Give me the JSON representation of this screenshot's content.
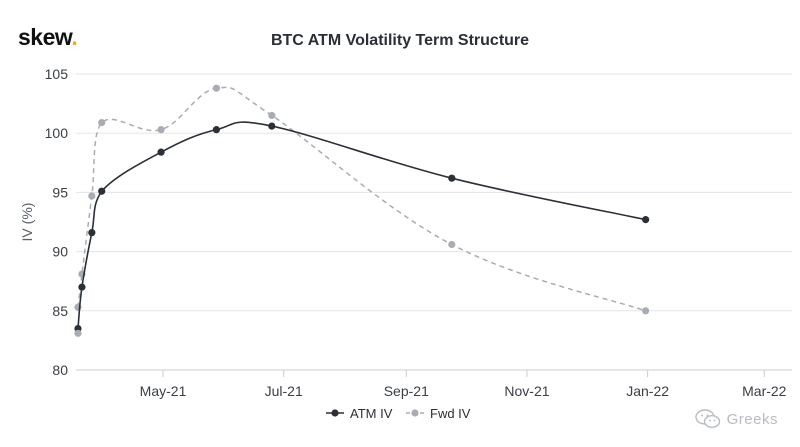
{
  "brand": {
    "name": "skew",
    "dot": "."
  },
  "watermark": {
    "text": "Greeks",
    "icon": "wechat-icon"
  },
  "chart_data": {
    "type": "line",
    "title": "BTC ATM Volatility Term Structure",
    "xlabel": "",
    "ylabel": "IV (%)",
    "ylim": [
      80,
      105
    ],
    "yticks": [
      80,
      85,
      90,
      95,
      100,
      105
    ],
    "xlim": [
      "2021-03-18",
      "2022-03-15"
    ],
    "xticks": [
      {
        "date": "2021-05-01",
        "label": "May-21"
      },
      {
        "date": "2021-07-01",
        "label": "Jul-21"
      },
      {
        "date": "2021-09-01",
        "label": "Sep-21"
      },
      {
        "date": "2021-11-01",
        "label": "Nov-21"
      },
      {
        "date": "2022-01-01",
        "label": "Jan-22"
      },
      {
        "date": "2022-03-01",
        "label": "Mar-22"
      }
    ],
    "series": [
      {
        "name": "ATM IV",
        "color": "#2b2f36",
        "style": "solid",
        "points": [
          {
            "x": "2021-03-19",
            "y": 83.5
          },
          {
            "x": "2021-03-21",
            "y": 87.0
          },
          {
            "x": "2021-03-26",
            "y": 91.6
          },
          {
            "x": "2021-03-31",
            "y": 95.1
          },
          {
            "x": "2021-04-30",
            "y": 98.4
          },
          {
            "x": "2021-05-28",
            "y": 100.3
          },
          {
            "x": "2021-06-25",
            "y": 100.6
          },
          {
            "x": "2021-09-24",
            "y": 96.2
          },
          {
            "x": "2021-12-31",
            "y": 92.7
          }
        ]
      },
      {
        "name": "Fwd IV",
        "color": "#a9adb3",
        "style": "dashed",
        "points": [
          {
            "x": "2021-03-19",
            "y": 85.3
          },
          {
            "x": "2021-03-21",
            "y": 88.1
          },
          {
            "x": "2021-03-26",
            "y": 94.7
          },
          {
            "x": "2021-03-31",
            "y": 100.9
          },
          {
            "x": "2021-04-30",
            "y": 100.3
          },
          {
            "x": "2021-05-28",
            "y": 103.8
          },
          {
            "x": "2021-06-25",
            "y": 101.5
          },
          {
            "x": "2021-09-24",
            "y": 90.6
          },
          {
            "x": "2021-12-31",
            "y": 85.0
          }
        ]
      }
    ],
    "extra_points": [
      {
        "series": "Fwd IV",
        "x": "2021-03-19",
        "y": 83.1
      }
    ],
    "legend": {
      "position": "bottom-center"
    }
  }
}
